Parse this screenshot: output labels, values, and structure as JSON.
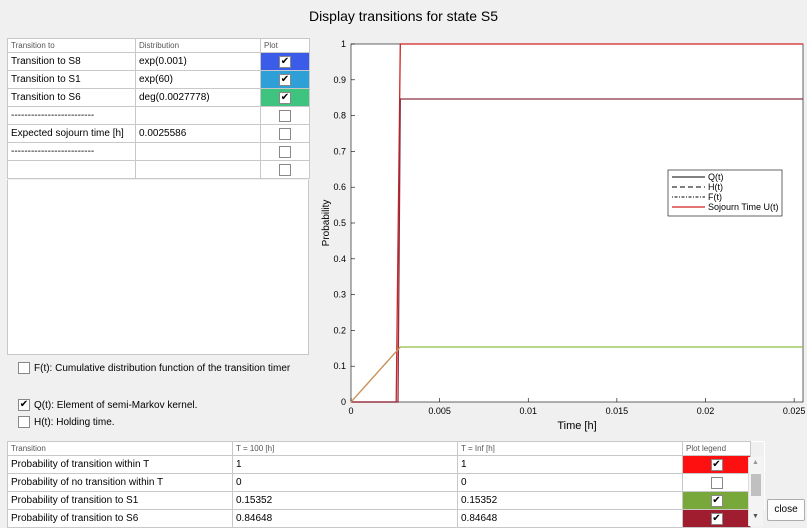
{
  "window": {
    "title": "Display transitions for state S5",
    "close_label": "close"
  },
  "transitions_table": {
    "headers": [
      "Transition to",
      "Distribution",
      "Plot"
    ],
    "rows": [
      {
        "name": "Transition to S8",
        "distribution": "exp(0.001)",
        "checked": true,
        "color": "#3a5ce8"
      },
      {
        "name": "Transition to S1",
        "distribution": "exp(60)",
        "checked": true,
        "color": "#2f9fd8"
      },
      {
        "name": "Transition to S6",
        "distribution": "deg(0.0027778)",
        "checked": true,
        "color": "#3fc47f"
      },
      {
        "name": "-------------------------",
        "distribution": "",
        "checked": false,
        "color": ""
      },
      {
        "name": "Expected sojourn time [h]",
        "distribution": "0.0025586",
        "checked": false,
        "color": ""
      },
      {
        "name": "-------------------------",
        "distribution": "",
        "checked": false,
        "color": ""
      },
      {
        "name": "",
        "distribution": "",
        "checked": false,
        "color": ""
      }
    ]
  },
  "options": {
    "f_label": "F(t): Cumulative distribution function of the transition timer",
    "f_checked": false,
    "q_label": "Q(t): Element of semi-Markov kernel.",
    "q_checked": true,
    "h_label": "H(t): Holding time.",
    "h_checked": false
  },
  "chart_data": {
    "type": "line",
    "xlabel": "Time [h]",
    "ylabel": "Probability",
    "xlim": [
      0,
      0.0255
    ],
    "ylim": [
      0,
      1
    ],
    "x_ticks": [
      0,
      0.005,
      0.01,
      0.015,
      0.02,
      0.025
    ],
    "x_tick_labels": [
      "0",
      "0.005",
      "0.01",
      "0.015",
      "0.02",
      "0.025"
    ],
    "y_ticks": [
      0,
      0.1,
      0.2,
      0.3,
      0.4,
      0.5,
      0.6,
      0.7,
      0.8,
      0.9,
      1
    ],
    "y_tick_labels": [
      "0",
      "0.1",
      "0.2",
      "0.3",
      "0.4",
      "0.5",
      "0.6",
      "0.7",
      "0.8",
      "0.9",
      "1"
    ],
    "legend": [
      "Q(t)",
      "H(t)",
      "F(t)",
      "Sojourn Time U(t)"
    ],
    "legend_placement": "right",
    "series": [
      {
        "color": "#d02020",
        "points": [
          [
            0,
            0
          ],
          [
            0.00255,
            0
          ],
          [
            0.00278,
            1
          ],
          [
            0.0255,
            1
          ]
        ]
      },
      {
        "color": "#8a3040",
        "points": [
          [
            0,
            0
          ],
          [
            0.00265,
            0
          ],
          [
            0.00278,
            0.8465
          ],
          [
            0.0255,
            0.8465
          ]
        ]
      },
      {
        "color": "#8fbf40",
        "points": [
          [
            0,
            0
          ],
          [
            0.00278,
            0.1535
          ],
          [
            0.0255,
            0.1535
          ]
        ]
      },
      {
        "color": "#d09060",
        "points": [
          [
            0,
            0
          ],
          [
            0.00278,
            0.1535
          ]
        ]
      }
    ]
  },
  "bottom_table": {
    "headers": [
      "Transition",
      "T = 100 [h]",
      "T = Inf [h]",
      "Plot legend"
    ],
    "rows": [
      {
        "name": "Probability of transition within T",
        "t100": "1",
        "tinf": "1",
        "checked": true,
        "color": "#ff1010"
      },
      {
        "name": "Probability of no transition within T",
        "t100": "0",
        "tinf": "0",
        "checked": false,
        "color": ""
      },
      {
        "name": "Probability of transition to S1",
        "t100": "0.15352",
        "tinf": "0.15352",
        "checked": true,
        "color": "#78a83a"
      },
      {
        "name": "Probability of transition to S6",
        "t100": "0.84648",
        "tinf": "0.84648",
        "checked": true,
        "color": "#a01d30"
      }
    ]
  }
}
